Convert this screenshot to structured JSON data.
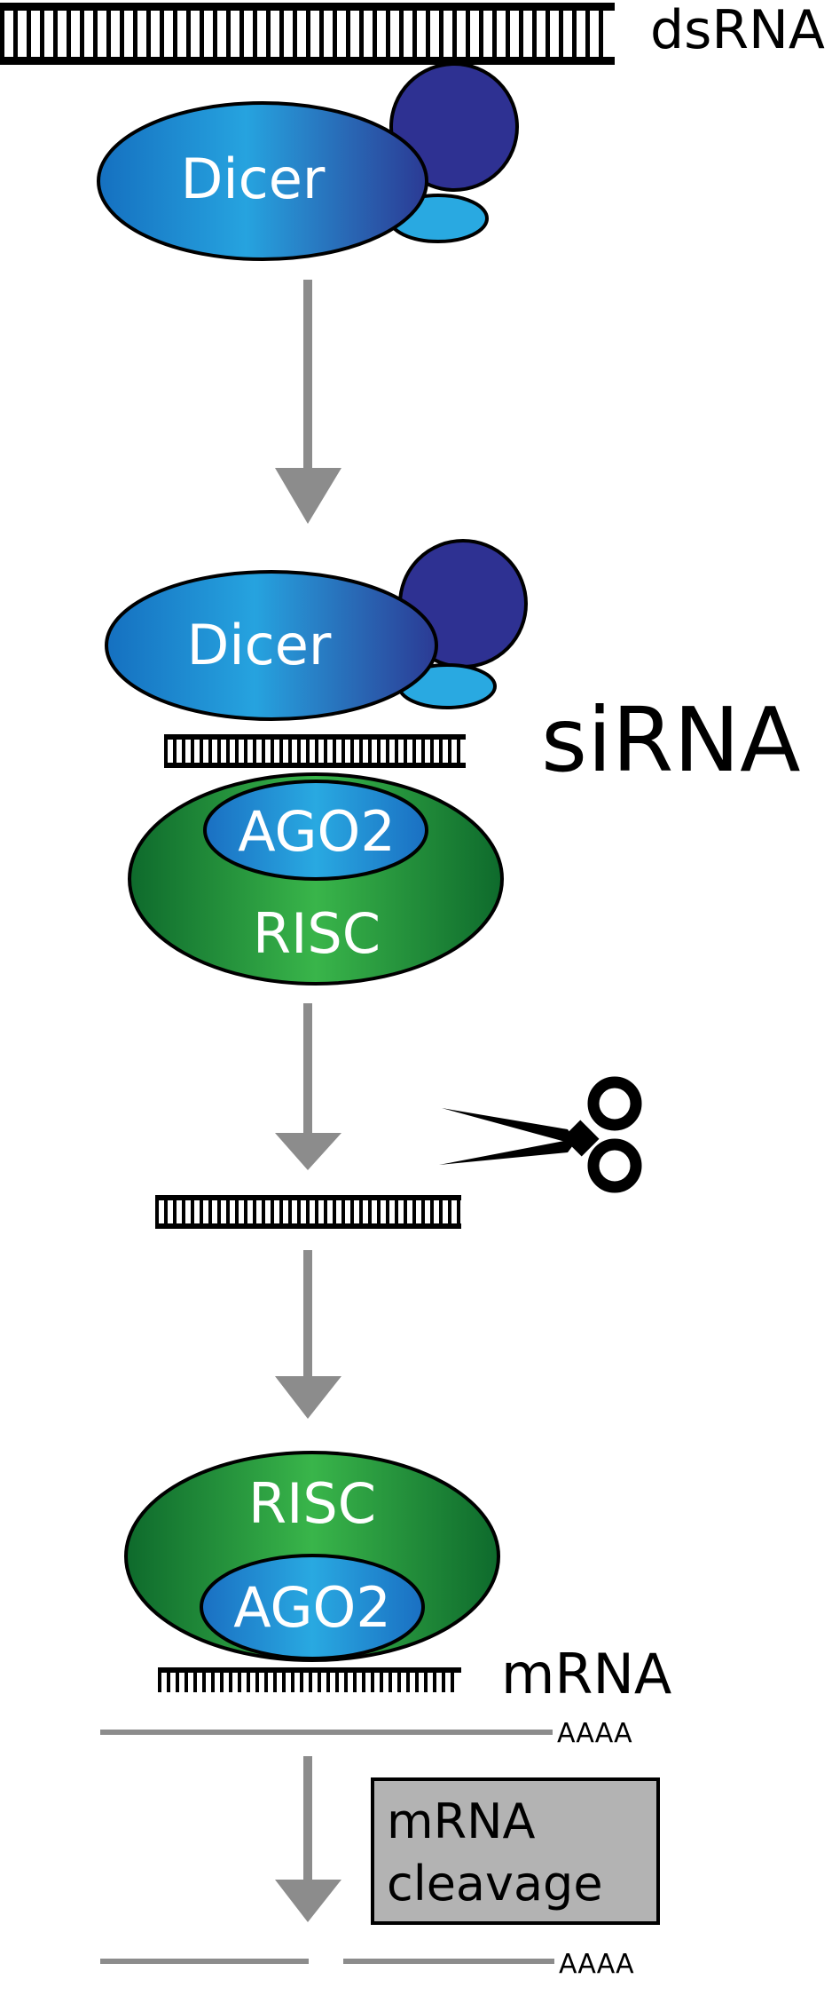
{
  "diagram": {
    "labels": {
      "dsrna": "dsRNA",
      "sirna": "siRNA",
      "mrna": "mRNA",
      "polya_1": "AAAA",
      "polya_2": "AAAA",
      "cleavage_line1": "mRNA",
      "cleavage_line2": "cleavage"
    },
    "proteins": {
      "dicer_1": "Dicer",
      "dicer_2": "Dicer",
      "ago2_1": "AGO2",
      "risc_1": "RISC",
      "ago2_2": "AGO2",
      "risc_2": "RISC"
    },
    "colors": {
      "arrow": "#8c8c8c",
      "dicer_blue": "#1a8ad6",
      "dark_blue": "#2e3192",
      "light_blue": "#29a9e1",
      "risc_green": "#2aa84a",
      "cleavage_box": "#b3b3b3"
    }
  }
}
